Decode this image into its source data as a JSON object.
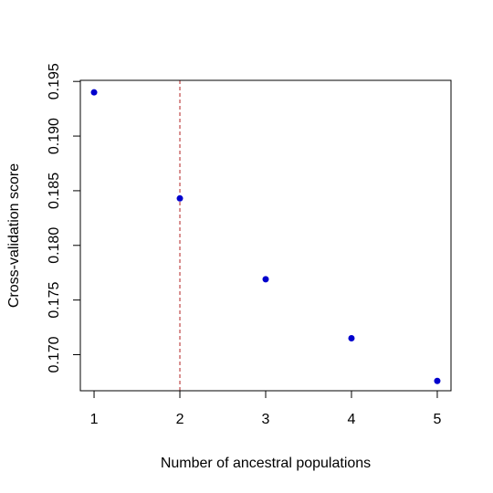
{
  "chart_data": {
    "type": "scatter",
    "xlabel": "Number of ancestral populations",
    "ylabel": "Cross-validation score",
    "x": [
      1,
      2,
      3,
      4,
      5
    ],
    "y": [
      0.194,
      0.1843,
      0.1769,
      0.1715,
      0.1676
    ],
    "xlim": [
      0.84,
      5.16
    ],
    "ylim": [
      0.1667,
      0.1951
    ],
    "xticks": [
      1,
      2,
      3,
      4,
      5
    ],
    "xtick_labels": [
      "1",
      "2",
      "3",
      "4",
      "5"
    ],
    "yticks": [
      0.17,
      0.175,
      0.18,
      0.185,
      0.19,
      0.195
    ],
    "ytick_labels": [
      "0.170",
      "0.175",
      "0.180",
      "0.185",
      "0.190",
      "0.195"
    ],
    "reference_line": {
      "orientation": "vertical",
      "x": 2,
      "style": "dashed",
      "color": "#b22222"
    },
    "point_color": "#0000cd",
    "grid": false,
    "legend": "none"
  }
}
